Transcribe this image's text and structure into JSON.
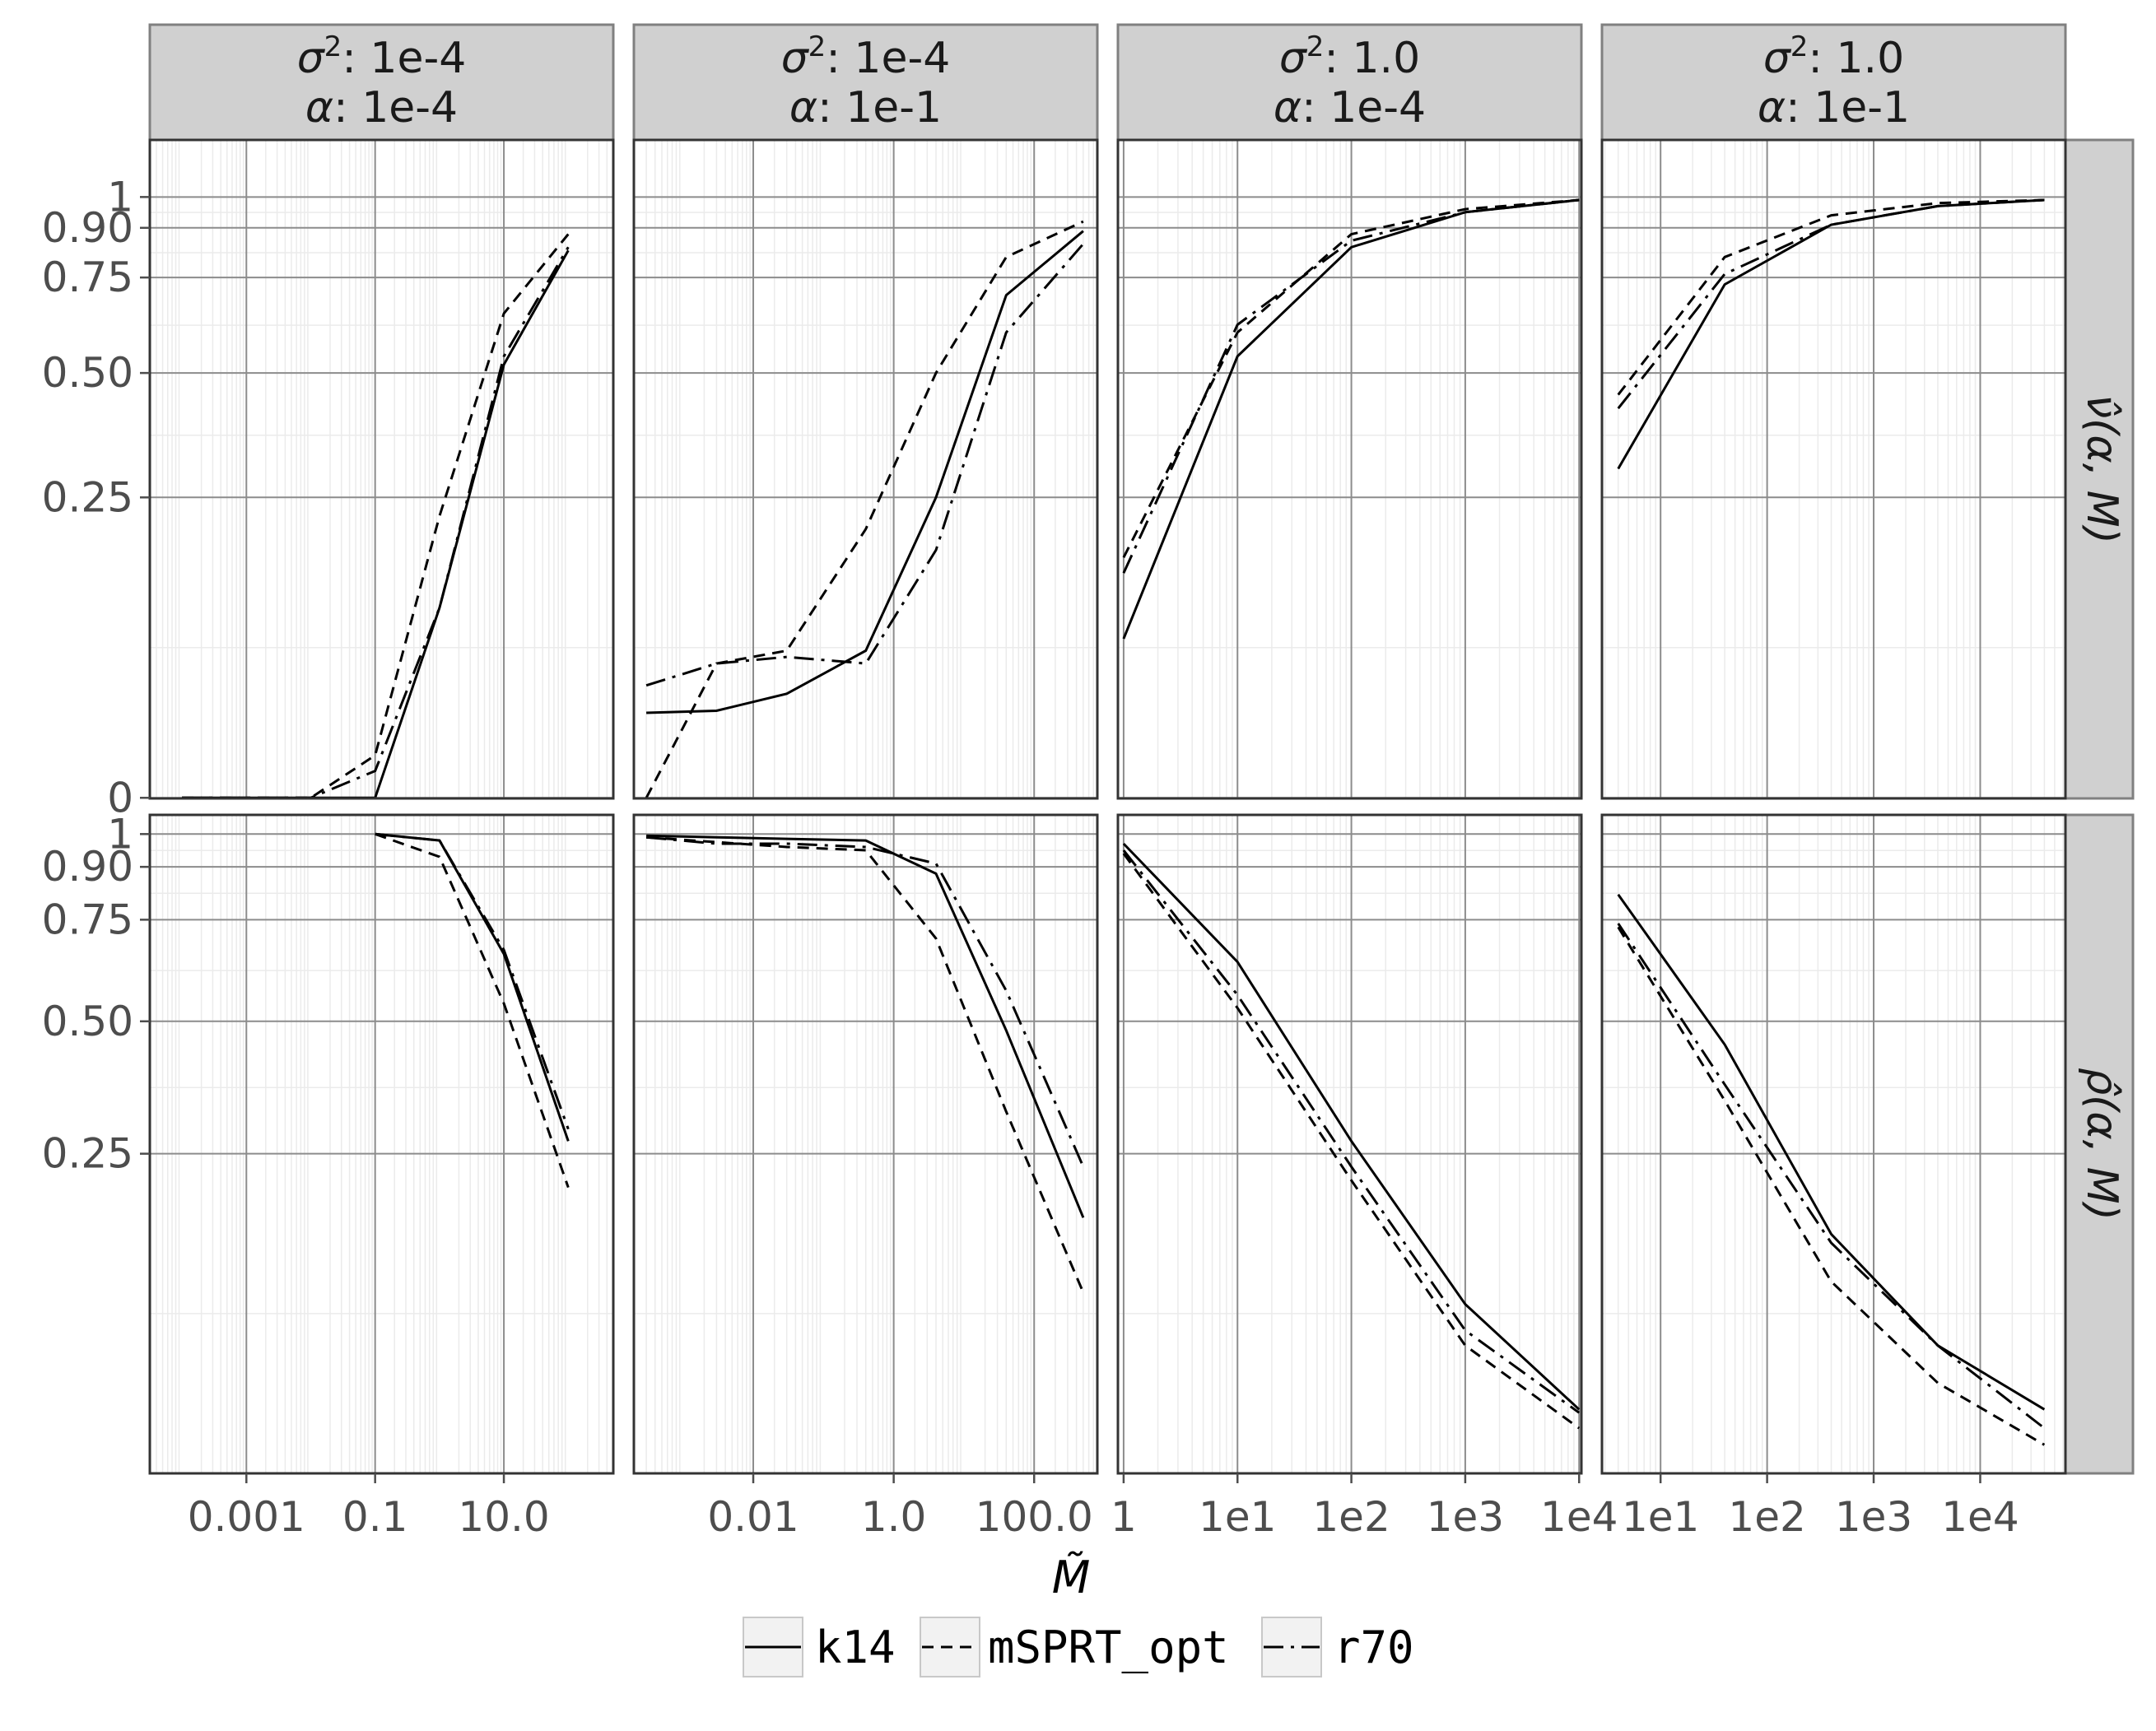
{
  "chart_data": {
    "type": "line",
    "xlabel": "M̃",
    "x_scale": "log",
    "y_scale": "sqrt",
    "grid": true,
    "legend_placement": "bottom",
    "columns": [
      {
        "sigma2": "1e-4",
        "alpha": "1e-4",
        "x_ticks": [
          0.001,
          0.1,
          10
        ],
        "x_tick_labels": [
          "0.001",
          "0.1",
          "10.0"
        ]
      },
      {
        "sigma2": "1e-4",
        "alpha": "1e-1",
        "x_ticks": [
          0.01,
          1,
          100
        ],
        "x_tick_labels": [
          "0.01",
          "1.0",
          "100.0"
        ]
      },
      {
        "sigma2": "1.0",
        "alpha": "1e-4",
        "x_ticks": [
          1,
          10,
          100,
          1000,
          10000
        ],
        "x_tick_labels": [
          "1",
          "1e1",
          "1e2",
          "1e3",
          "1e4"
        ]
      },
      {
        "sigma2": "1.0",
        "alpha": "1e-1",
        "x_ticks": [
          10,
          100,
          1000,
          10000
        ],
        "x_tick_labels": [
          "1e1",
          "1e2",
          "1e3",
          "1e4"
        ]
      }
    ],
    "rows": [
      {
        "label": "ν̂(α, M)",
        "y_ticks": [
          0,
          0.25,
          0.5,
          0.75,
          0.9,
          1
        ],
        "y_tick_labels": [
          "0",
          "0.25",
          "0.50",
          "0.75",
          "0.90",
          "1"
        ]
      },
      {
        "label": "ρ̂(α, M)",
        "y_ticks": [
          0.25,
          0.5,
          0.75,
          0.9,
          1
        ],
        "y_tick_labels": [
          "0.25",
          "0.50",
          "0.75",
          "0.90",
          "1"
        ]
      }
    ],
    "legend": [
      {
        "name": "k14",
        "dash": "solid"
      },
      {
        "name": "mSPRT_opt",
        "dash": "dashed"
      },
      {
        "name": "r70",
        "dash": "dashdot"
      }
    ],
    "panels": [
      {
        "row": 0,
        "col": 0,
        "series": [
          {
            "name": "k14",
            "x": [
              0.0001,
              0.001,
              0.01,
              0.1,
              1,
              10,
              100
            ],
            "y": [
              0,
              0,
              0,
              0,
              0.1,
              0.52,
              0.83
            ]
          },
          {
            "name": "mSPRT_opt",
            "x": [
              0.0001,
              0.001,
              0.01,
              0.1,
              1,
              10,
              100
            ],
            "y": [
              0,
              0,
              0,
              0.005,
              0.22,
              0.65,
              0.88
            ]
          },
          {
            "name": "r70",
            "x": [
              0.0001,
              0.001,
              0.01,
              0.1,
              1,
              10,
              100
            ],
            "y": [
              0,
              0,
              0,
              0.002,
              0.1,
              0.54,
              0.84
            ]
          }
        ]
      },
      {
        "row": 0,
        "col": 1,
        "series": [
          {
            "name": "k14",
            "x": [
              0.0003,
              0.003,
              0.03,
              0.4,
              4,
              40,
              500
            ],
            "y": [
              0.02,
              0.021,
              0.03,
              0.06,
              0.25,
              0.7,
              0.89
            ]
          },
          {
            "name": "mSPRT_opt",
            "x": [
              0.0003,
              0.003,
              0.03,
              0.4,
              4,
              40,
              500
            ],
            "y": [
              0,
              0.05,
              0.06,
              0.2,
              0.5,
              0.81,
              0.92
            ]
          },
          {
            "name": "r70",
            "x": [
              0.0003,
              0.003,
              0.03,
              0.4,
              4,
              40,
              500
            ],
            "y": [
              0.035,
              0.05,
              0.055,
              0.05,
              0.17,
              0.6,
              0.85
            ]
          }
        ]
      },
      {
        "row": 0,
        "col": 2,
        "series": [
          {
            "name": "k14",
            "x": [
              1,
              10,
              100,
              1000,
              10000
            ],
            "y": [
              0.07,
              0.54,
              0.84,
              0.95,
              0.99
            ]
          },
          {
            "name": "mSPRT_opt",
            "x": [
              1,
              10,
              100,
              1000,
              10000
            ],
            "y": [
              0.16,
              0.6,
              0.88,
              0.96,
              0.99
            ]
          },
          {
            "name": "r70",
            "x": [
              1,
              10,
              100,
              1000,
              10000
            ],
            "y": [
              0.14,
              0.62,
              0.86,
              0.95,
              0.99
            ]
          }
        ]
      },
      {
        "row": 0,
        "col": 3,
        "series": [
          {
            "name": "k14",
            "x": [
              4,
              40,
              400,
              4000,
              40000
            ],
            "y": [
              0.3,
              0.73,
              0.91,
              0.97,
              0.99
            ]
          },
          {
            "name": "mSPRT_opt",
            "x": [
              4,
              40,
              400,
              4000,
              40000
            ],
            "y": [
              0.45,
              0.81,
              0.94,
              0.98,
              0.99
            ]
          },
          {
            "name": "r70",
            "x": [
              4,
              40,
              400,
              4000,
              40000
            ],
            "y": [
              0.42,
              0.76,
              0.91,
              0.97,
              0.99
            ]
          }
        ]
      },
      {
        "row": 1,
        "col": 0,
        "series": [
          {
            "name": "k14",
            "x": [
              0.1,
              1,
              10,
              100
            ],
            "y": [
              1,
              0.98,
              0.66,
              0.27
            ]
          },
          {
            "name": "mSPRT_opt",
            "x": [
              0.1,
              1,
              10,
              100
            ],
            "y": [
              1,
              0.93,
              0.54,
              0.2
            ]
          },
          {
            "name": "r70",
            "x": [
              0.1,
              1,
              10,
              100
            ],
            "y": [
              1,
              0.98,
              0.67,
              0.29
            ]
          }
        ]
      },
      {
        "row": 1,
        "col": 1,
        "series": [
          {
            "name": "k14",
            "x": [
              0.0003,
              0.003,
              0.03,
              0.4,
              4,
              40,
              500
            ],
            "y": [
              0.995,
              0.99,
              0.985,
              0.98,
              0.88,
              0.48,
              0.16
            ]
          },
          {
            "name": "mSPRT_opt",
            "x": [
              0.0003,
              0.003,
              0.03,
              0.4,
              4,
              40,
              500
            ],
            "y": [
              0.99,
              0.975,
              0.96,
              0.95,
              0.7,
              0.32,
              0.08
            ]
          },
          {
            "name": "r70",
            "x": [
              0.0003,
              0.003,
              0.03,
              0.4,
              4,
              40,
              500
            ],
            "y": [
              0.99,
              0.97,
              0.97,
              0.96,
              0.91,
              0.57,
              0.23
            ]
          }
        ]
      },
      {
        "row": 1,
        "col": 2,
        "series": [
          {
            "name": "k14",
            "x": [
              1,
              10,
              100,
              1000,
              10000
            ],
            "y": [
              0.97,
              0.64,
              0.27,
              0.07,
              0.01
            ]
          },
          {
            "name": "mSPRT_opt",
            "x": [
              1,
              10,
              100,
              1000,
              10000
            ],
            "y": [
              0.94,
              0.53,
              0.21,
              0.04,
              0.005
            ]
          },
          {
            "name": "r70",
            "x": [
              1,
              10,
              100,
              1000,
              10000
            ],
            "y": [
              0.95,
              0.56,
              0.23,
              0.05,
              0.009
            ]
          }
        ]
      },
      {
        "row": 1,
        "col": 3,
        "series": [
          {
            "name": "k14",
            "x": [
              4,
              40,
              400,
              4000,
              40000
            ],
            "y": [
              0.82,
              0.45,
              0.14,
              0.04,
              0.01
            ]
          },
          {
            "name": "mSPRT_opt",
            "x": [
              4,
              40,
              400,
              4000,
              40000
            ],
            "y": [
              0.73,
              0.34,
              0.09,
              0.02,
              0.002
            ]
          },
          {
            "name": "r70",
            "x": [
              4,
              40,
              400,
              4000,
              40000
            ],
            "y": [
              0.74,
              0.37,
              0.13,
              0.04,
              0.005
            ]
          }
        ]
      }
    ]
  }
}
